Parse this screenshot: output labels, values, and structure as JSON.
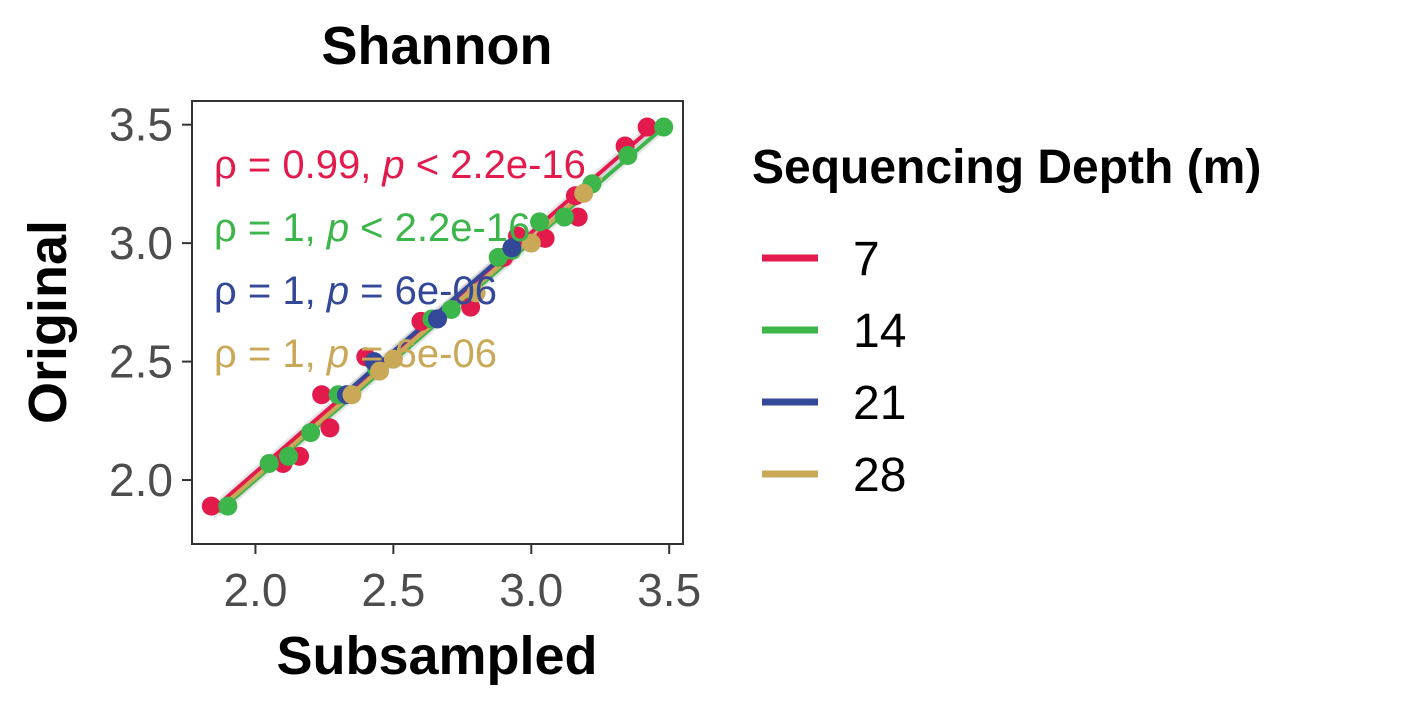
{
  "chart_data": {
    "type": "scatter",
    "title": "Shannon",
    "xlabel": "Subsampled",
    "ylabel": "Original",
    "xlim": [
      1.77,
      3.55
    ],
    "ylim": [
      1.73,
      3.6
    ],
    "xticks": [
      2.0,
      2.5,
      3.0,
      3.5
    ],
    "yticks": [
      2.0,
      2.5,
      3.0,
      3.5
    ],
    "xtick_labels": [
      "2.0",
      "2.5",
      "3.0",
      "3.5"
    ],
    "ytick_labels": [
      "2.0",
      "2.5",
      "3.0",
      "3.5"
    ],
    "grid": false,
    "legend": {
      "title": "Sequencing Depth (m)",
      "position": "right"
    },
    "series": [
      {
        "name": "7",
        "color": "#E31A4C",
        "annotation": {
          "rho": "ρ = 0.99, ",
          "p_symbol": "p",
          "p_text": " < 2.2e-16"
        },
        "points": [
          [
            1.84,
            1.89
          ],
          [
            2.1,
            2.07
          ],
          [
            2.16,
            2.1
          ],
          [
            2.24,
            2.36
          ],
          [
            2.27,
            2.22
          ],
          [
            2.4,
            2.52
          ],
          [
            2.6,
            2.67
          ],
          [
            2.78,
            2.73
          ],
          [
            2.9,
            2.94
          ],
          [
            2.95,
            3.03
          ],
          [
            3.05,
            3.02
          ],
          [
            3.16,
            3.2
          ],
          [
            3.17,
            3.11
          ],
          [
            3.34,
            3.41
          ],
          [
            3.42,
            3.49
          ]
        ],
        "fit": [
          [
            1.84,
            1.87
          ],
          [
            3.42,
            3.47
          ]
        ]
      },
      {
        "name": "14",
        "color": "#3CB54A",
        "annotation": {
          "rho": "ρ = 1, ",
          "p_symbol": "p",
          "p_text": " < 2.2e-16"
        },
        "points": [
          [
            1.9,
            1.89
          ],
          [
            2.05,
            2.07
          ],
          [
            2.12,
            2.1
          ],
          [
            2.2,
            2.2
          ],
          [
            2.3,
            2.36
          ],
          [
            2.44,
            2.47
          ],
          [
            2.64,
            2.68
          ],
          [
            2.71,
            2.72
          ],
          [
            2.88,
            2.94
          ],
          [
            2.93,
            2.97
          ],
          [
            3.03,
            3.09
          ],
          [
            3.12,
            3.11
          ],
          [
            3.22,
            3.25
          ],
          [
            3.35,
            3.37
          ],
          [
            3.48,
            3.49
          ]
        ],
        "fit": [
          [
            1.87,
            1.87
          ],
          [
            3.48,
            3.49
          ]
        ]
      },
      {
        "name": "21",
        "color": "#34489A",
        "annotation": {
          "rho": "ρ = 1, ",
          "p_symbol": "p",
          "p_text": " = 6e-06"
        },
        "points": [
          [
            2.33,
            2.36
          ],
          [
            2.43,
            2.5
          ],
          [
            2.66,
            2.68
          ],
          [
            2.93,
            2.98
          ]
        ],
        "fit": [
          [
            2.3,
            2.34
          ],
          [
            2.96,
            3.01
          ]
        ]
      },
      {
        "name": "28",
        "color": "#C9A957",
        "annotation": {
          "rho": "ρ = 1, ",
          "p_symbol": "p",
          "p_text": " = 6e-06"
        },
        "points": [
          [
            2.35,
            2.36
          ],
          [
            2.45,
            2.46
          ],
          [
            2.5,
            2.51
          ],
          [
            2.8,
            2.79
          ],
          [
            3.0,
            3.0
          ],
          [
            3.19,
            3.21
          ]
        ],
        "fit": [
          [
            1.85,
            1.86
          ],
          [
            3.25,
            3.27
          ]
        ]
      }
    ]
  }
}
